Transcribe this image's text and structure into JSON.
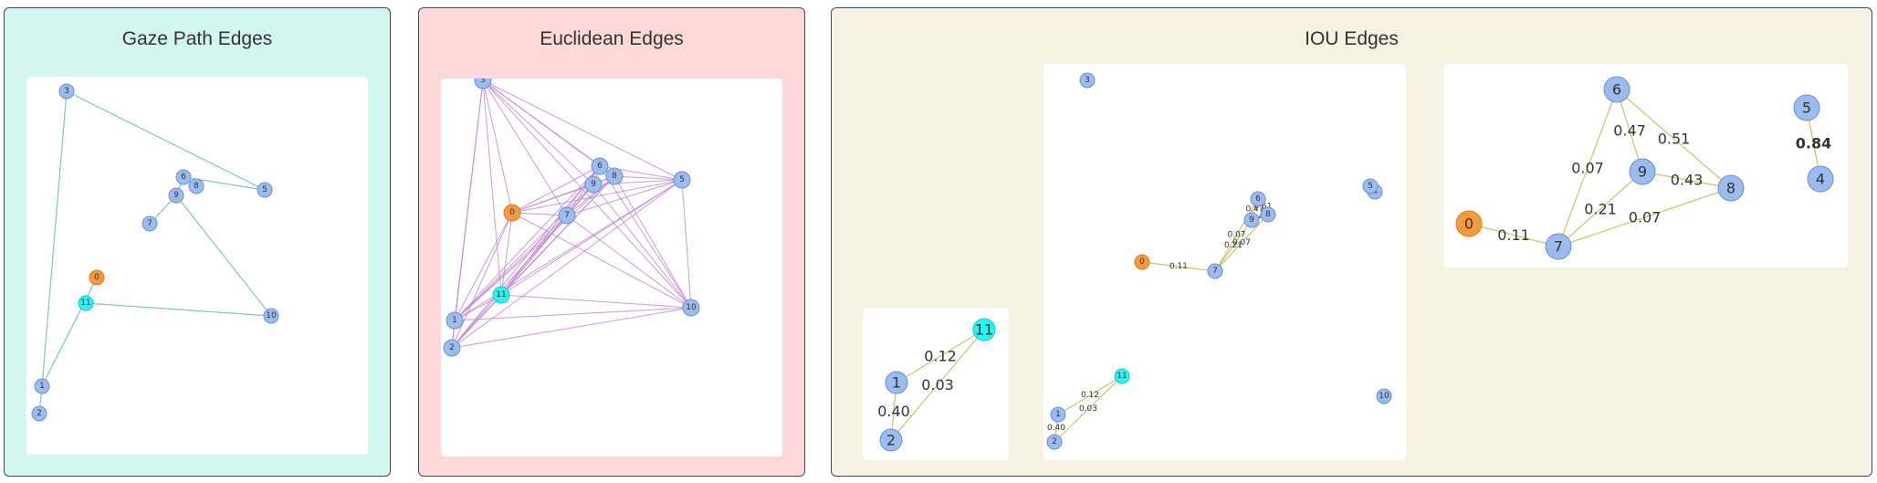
{
  "colors": {
    "node_default": "#9bbcf0",
    "node_default_stroke": "#6d8fc9",
    "node_zero": "#f49a3d",
    "node_zero_stroke": "#d87f22",
    "node_eleven": "#2ef2ef",
    "node_eleven_stroke": "#17c9c6",
    "panel_gaze_bg": "#d3f6f1",
    "panel_euclid_bg": "#fdd8d8",
    "panel_iou_bg": "#f6f1e0",
    "edge_gaze": "#7fc6c3",
    "edge_euclid": "#c38ad1",
    "edge_iou": "#c9c46a"
  },
  "panels": [
    {
      "id": "gaze",
      "title": "Gaze Path Edges"
    },
    {
      "id": "euclidean",
      "title": "Euclidean Edges"
    },
    {
      "id": "iou",
      "title": "IOU Edges"
    }
  ],
  "graphs": [
    {
      "id": "gaze",
      "edge_color_key": "edge_gaze",
      "nodes": [
        {
          "id": "0",
          "label": "0"
        },
        {
          "id": "1",
          "label": "1"
        },
        {
          "id": "2",
          "label": "2"
        },
        {
          "id": "3",
          "label": "3"
        },
        {
          "id": "5",
          "label": "5"
        },
        {
          "id": "6",
          "label": "6"
        },
        {
          "id": "7",
          "label": "7"
        },
        {
          "id": "8",
          "label": "8"
        },
        {
          "id": "9",
          "label": "9"
        },
        {
          "id": "10",
          "label": "10"
        },
        {
          "id": "11",
          "label": "11"
        }
      ],
      "edges": [
        {
          "a": "2",
          "b": "1"
        },
        {
          "a": "1",
          "b": "3"
        },
        {
          "a": "3",
          "b": "5"
        },
        {
          "a": "5",
          "b": "6"
        },
        {
          "a": "6",
          "b": "9"
        },
        {
          "a": "9",
          "b": "7"
        },
        {
          "a": "9",
          "b": "10"
        },
        {
          "a": "10",
          "b": "11"
        },
        {
          "a": "0",
          "b": "1"
        }
      ]
    },
    {
      "id": "euclidean",
      "edge_color_key": "edge_euclid",
      "complete": true,
      "nodes": [
        {
          "id": "0",
          "label": "0"
        },
        {
          "id": "1",
          "label": "1"
        },
        {
          "id": "2",
          "label": "2"
        },
        {
          "id": "3",
          "label": "3"
        },
        {
          "id": "5",
          "label": "5"
        },
        {
          "id": "6",
          "label": "6"
        },
        {
          "id": "7",
          "label": "7"
        },
        {
          "id": "8",
          "label": "8"
        },
        {
          "id": "9",
          "label": "9"
        },
        {
          "id": "10",
          "label": "10"
        },
        {
          "id": "11",
          "label": "11"
        }
      ],
      "edges": []
    },
    {
      "id": "iou-left",
      "edge_color_key": "edge_iou",
      "nodes": [
        {
          "id": "1",
          "label": "1"
        },
        {
          "id": "2",
          "label": "2"
        },
        {
          "id": "11",
          "label": "11"
        }
      ],
      "edges": [
        {
          "a": "1",
          "b": "11",
          "label": "0.12"
        },
        {
          "a": "2",
          "b": "11",
          "label": "0.03"
        },
        {
          "a": "1",
          "b": "2",
          "label": "0.40"
        }
      ]
    },
    {
      "id": "iou-full",
      "edge_color_key": "edge_iou",
      "nodes": [
        {
          "id": "0",
          "label": "0"
        },
        {
          "id": "1",
          "label": "1"
        },
        {
          "id": "2",
          "label": "2"
        },
        {
          "id": "3",
          "label": "3"
        },
        {
          "id": "4",
          "label": "4"
        },
        {
          "id": "5",
          "label": "5"
        },
        {
          "id": "6",
          "label": "6"
        },
        {
          "id": "7",
          "label": "7"
        },
        {
          "id": "8",
          "label": "8"
        },
        {
          "id": "9",
          "label": "9"
        },
        {
          "id": "10",
          "label": "10"
        },
        {
          "id": "11",
          "label": "11"
        }
      ],
      "edges": [
        {
          "a": "0",
          "b": "7",
          "label": "0.11"
        },
        {
          "a": "7",
          "b": "9",
          "label": "0.21"
        },
        {
          "a": "7",
          "b": "8",
          "label": "0.07"
        },
        {
          "a": "6",
          "b": "7",
          "label": "0.07"
        },
        {
          "a": "6",
          "b": "9",
          "label": "0.47"
        },
        {
          "a": "6",
          "b": "8",
          "label": "0.51"
        },
        {
          "a": "9",
          "b": "8",
          "label": "0.43"
        },
        {
          "a": "1",
          "b": "11",
          "label": "0.12"
        },
        {
          "a": "2",
          "b": "11",
          "label": "0.03"
        },
        {
          "a": "1",
          "b": "2",
          "label": "0.40"
        }
      ]
    },
    {
      "id": "iou-right",
      "edge_color_key": "edge_iou",
      "nodes": [
        {
          "id": "0",
          "label": "0"
        },
        {
          "id": "4",
          "label": "4"
        },
        {
          "id": "5",
          "label": "5"
        },
        {
          "id": "6",
          "label": "6"
        },
        {
          "id": "7",
          "label": "7"
        },
        {
          "id": "8",
          "label": "8"
        },
        {
          "id": "9",
          "label": "9"
        }
      ],
      "edges": [
        {
          "a": "0",
          "b": "7",
          "label": "0.11"
        },
        {
          "a": "7",
          "b": "9",
          "label": "0.21"
        },
        {
          "a": "7",
          "b": "8",
          "label": "0.07"
        },
        {
          "a": "6",
          "b": "7",
          "label": "0.07"
        },
        {
          "a": "6",
          "b": "9",
          "label": "0.47"
        },
        {
          "a": "6",
          "b": "8",
          "label": "0.51"
        },
        {
          "a": "9",
          "b": "8",
          "label": "0.43"
        },
        {
          "a": "5",
          "b": "4",
          "label": "0.84",
          "bold": true
        }
      ]
    }
  ]
}
